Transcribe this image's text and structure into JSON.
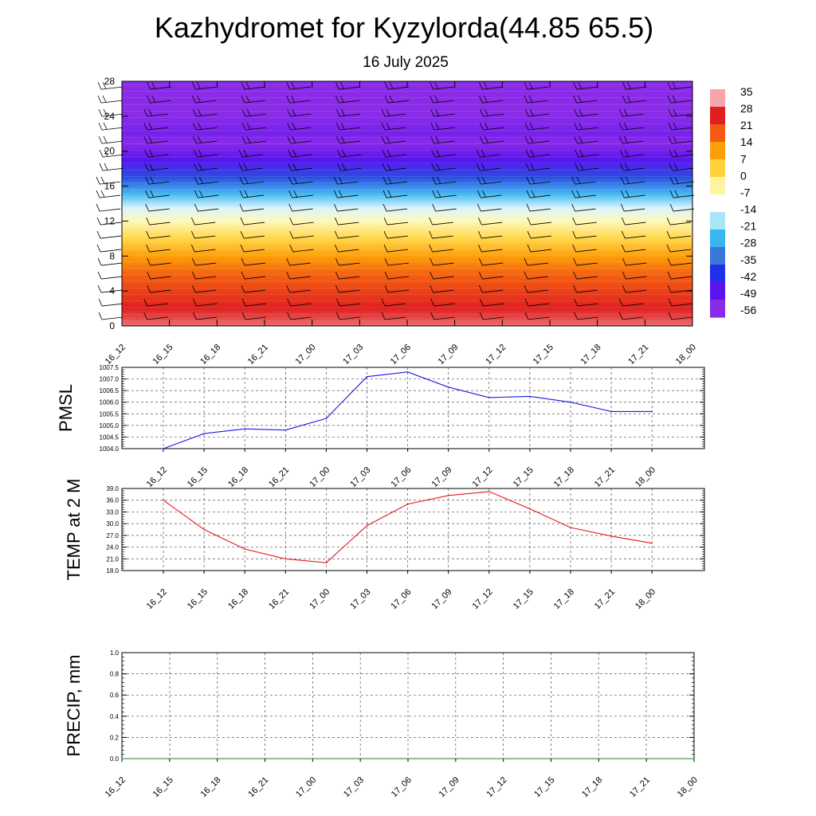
{
  "title": "Kazhydromet for Kyzylorda(44.85 65.5)",
  "subtitle": "16 July 2025",
  "time_labels": [
    "16_12",
    "16_15",
    "16_18",
    "16_21",
    "17_00",
    "17_03",
    "17_06",
    "17_09",
    "17_12",
    "17_15",
    "17_18",
    "17_21",
    "18_00"
  ],
  "chart_data": [
    {
      "type": "heatmap",
      "name": "temperature-wind cross-section",
      "x": [
        "16_12",
        "16_15",
        "16_18",
        "16_21",
        "17_00",
        "17_03",
        "17_06",
        "17_09",
        "17_12",
        "17_15",
        "17_18",
        "17_21",
        "18_00"
      ],
      "ylim": [
        0,
        28
      ],
      "yticks": [
        0,
        4,
        8,
        12,
        16,
        20,
        24,
        28
      ],
      "colorbar": {
        "labels": [
          "35",
          "28",
          "21",
          "14",
          "7",
          "0",
          "-7",
          "-14",
          "-21",
          "-28",
          "-35",
          "-42",
          "-49",
          "-56"
        ],
        "colors": [
          "#f6a6a6",
          "#e02020",
          "#f55a10",
          "#fca00a",
          "#ffd23c",
          "#fff5a0",
          "#ffffff",
          "#a8e6f7",
          "#38b6f0",
          "#3878d8",
          "#2030e8",
          "#5a14f0",
          "#8a2be8"
        ]
      },
      "profile": [
        {
          "level": 0,
          "value": 32
        },
        {
          "level": 1,
          "value": 30
        },
        {
          "level": 2,
          "value": 28
        },
        {
          "level": 4,
          "value": 24
        },
        {
          "level": 6,
          "value": 20
        },
        {
          "level": 8,
          "value": 14
        },
        {
          "level": 10,
          "value": 6
        },
        {
          "level": 12,
          "value": -2
        },
        {
          "level": 13.5,
          "value": -10
        },
        {
          "level": 15,
          "value": -20
        },
        {
          "level": 17,
          "value": -32
        },
        {
          "level": 19,
          "value": -42
        },
        {
          "level": 21,
          "value": -56
        },
        {
          "level": 22,
          "value": -50
        },
        {
          "level": 24,
          "value": -56
        },
        {
          "level": 28,
          "value": -60
        }
      ]
    },
    {
      "type": "line",
      "ylabel": "PMSL",
      "x": [
        "16_12",
        "16_15",
        "16_18",
        "16_21",
        "17_00",
        "17_03",
        "17_06",
        "17_09",
        "17_12",
        "17_15",
        "17_18",
        "17_21",
        "18_00"
      ],
      "values": [
        1004.0,
        1004.65,
        1004.85,
        1004.8,
        1005.3,
        1007.1,
        1007.3,
        1006.65,
        1006.2,
        1006.25,
        1006.0,
        1005.6,
        1005.6
      ],
      "ylim": [
        1004.0,
        1007.5
      ],
      "yticks": [
        "1004.0",
        "1004.5",
        "1005.0",
        "1005.5",
        "1006.0",
        "1006.5",
        "1007.0",
        "1007.5"
      ],
      "color": "#1a1ae6"
    },
    {
      "type": "line",
      "ylabel": "TEMP at 2 M",
      "x": [
        "16_12",
        "16_15",
        "16_18",
        "16_21",
        "17_00",
        "17_03",
        "17_06",
        "17_09",
        "17_12",
        "17_15",
        "17_18",
        "17_21",
        "18_00"
      ],
      "values": [
        36.0,
        28.5,
        23.5,
        21.0,
        20.0,
        29.5,
        35.0,
        37.2,
        38.2,
        33.8,
        29.0,
        26.8,
        25.0
      ],
      "ylim": [
        18.0,
        39.0
      ],
      "yticks": [
        "18.0",
        "21.0",
        "24.0",
        "27.0",
        "30.0",
        "33.0",
        "36.0",
        "39.0"
      ],
      "color": "#e61a1a"
    },
    {
      "type": "line",
      "ylabel": "PRECIP, mm",
      "x": [
        "16_12",
        "16_15",
        "16_18",
        "16_21",
        "17_00",
        "17_03",
        "17_06",
        "17_09",
        "17_12",
        "17_15",
        "17_18",
        "17_21",
        "18_00"
      ],
      "values": [
        0,
        0,
        0,
        0,
        0,
        0,
        0,
        0,
        0,
        0,
        0,
        0,
        0
      ],
      "ylim": [
        0.0,
        1.0
      ],
      "yticks": [
        "0.0",
        "0.2",
        "0.4",
        "0.6",
        "0.8",
        "1.0"
      ],
      "color": "#1a8a1a"
    }
  ]
}
